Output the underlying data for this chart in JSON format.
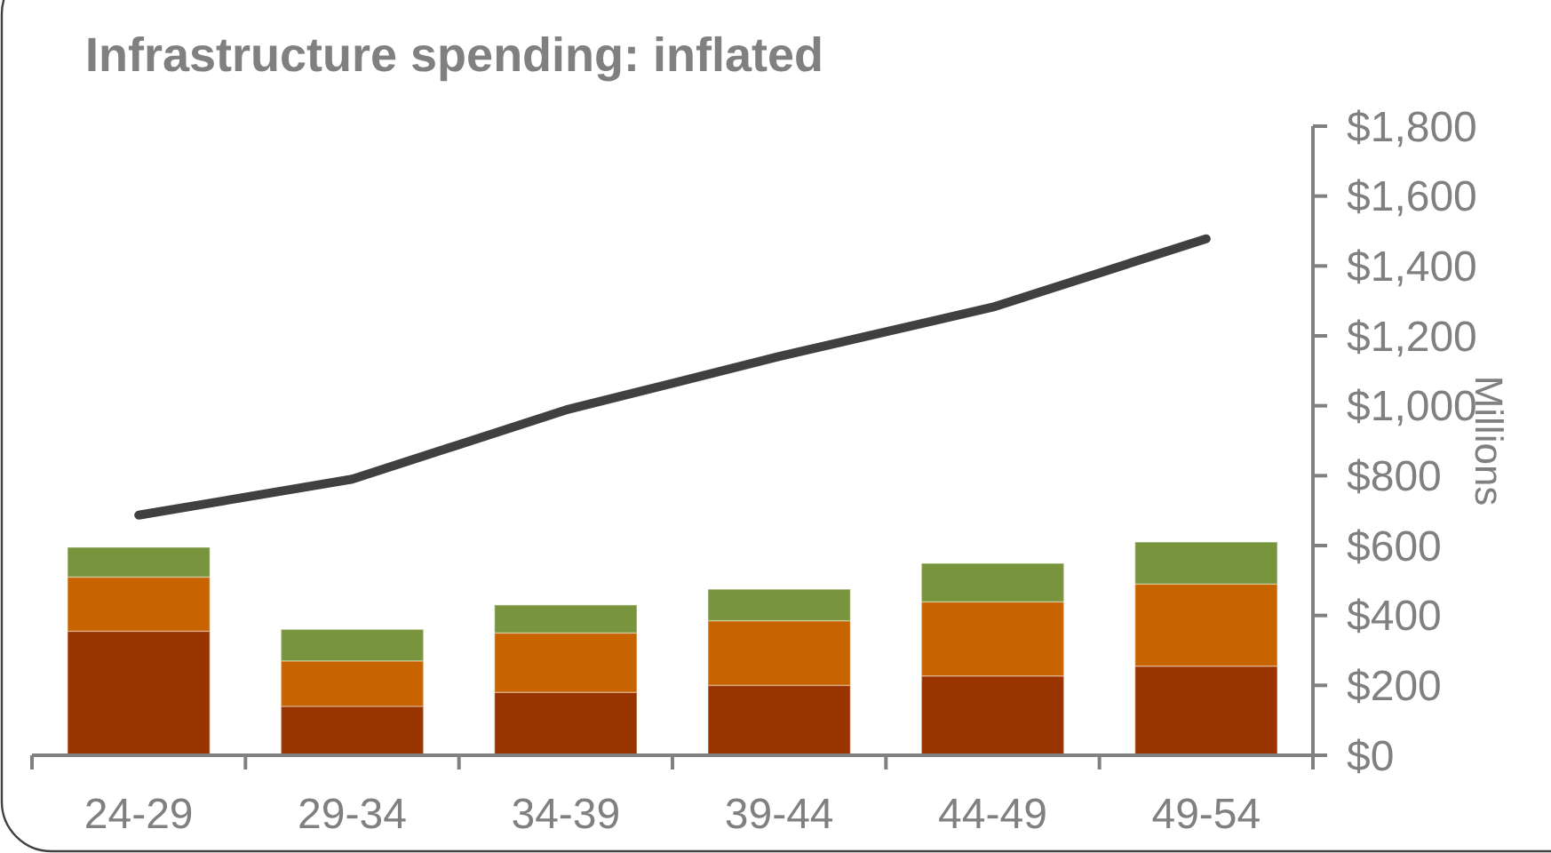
{
  "chart_data": {
    "type": "bar",
    "title": "Infrastructure spending: inflated",
    "ylabel": "Millions",
    "categories": [
      "24-29",
      "29-34",
      "34-39",
      "39-44",
      "44-49",
      "49-54"
    ],
    "stacked": true,
    "grid": false,
    "ylim": [
      0,
      1800
    ],
    "yticks": [
      {
        "value": 0,
        "label": "$0"
      },
      {
        "value": 200,
        "label": "$200"
      },
      {
        "value": 400,
        "label": "$400"
      },
      {
        "value": 600,
        "label": "$600"
      },
      {
        "value": 800,
        "label": "$800"
      },
      {
        "value": 1000,
        "label": "$1,000"
      },
      {
        "value": 1200,
        "label": "$1,200"
      },
      {
        "value": 1400,
        "label": "$1,400"
      },
      {
        "value": 1600,
        "label": "$1,600"
      },
      {
        "value": 1800,
        "label": "$1,800"
      }
    ],
    "series": [
      {
        "color": "#993300",
        "values": [
          355,
          140,
          180,
          200,
          227,
          255
        ]
      },
      {
        "color": "#c86400",
        "values": [
          155,
          130,
          170,
          185,
          212,
          235
        ]
      },
      {
        "color": "#78943c",
        "values": [
          85,
          90,
          80,
          90,
          110,
          120
        ]
      },
      {
        "type": "line",
        "color": "#404040",
        "values": [
          687,
          790,
          988,
          1141,
          1282,
          1478
        ]
      }
    ]
  }
}
